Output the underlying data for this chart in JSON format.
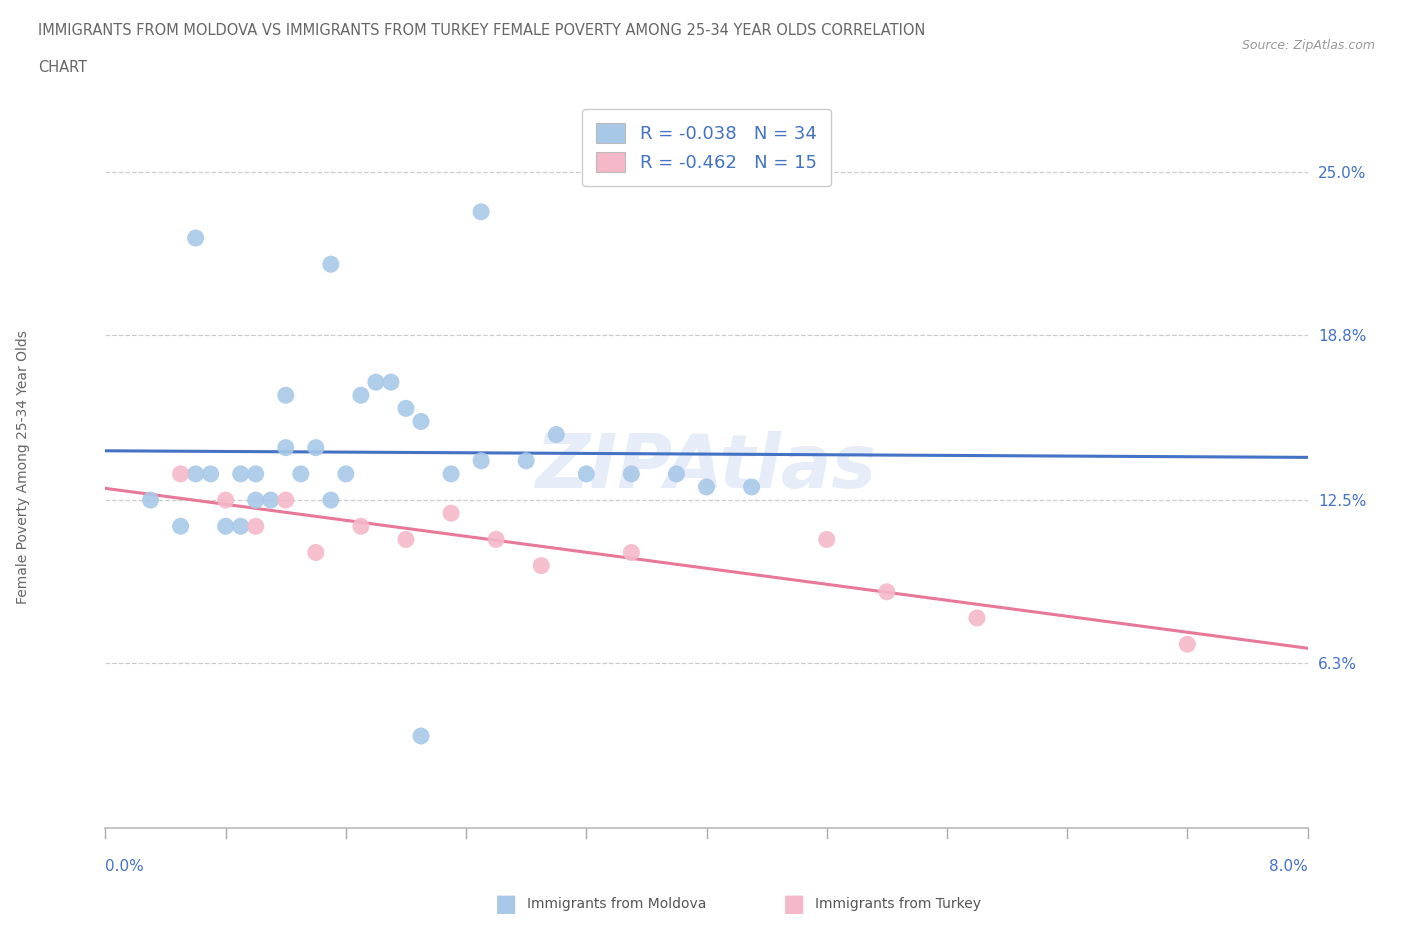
{
  "title_line1": "IMMIGRANTS FROM MOLDOVA VS IMMIGRANTS FROM TURKEY FEMALE POVERTY AMONG 25-34 YEAR OLDS CORRELATION",
  "title_line2": "CHART",
  "source_text": "Source: ZipAtlas.com",
  "moldova_color": "#a8c8e8",
  "turkey_color": "#f4b8c8",
  "moldova_line_color": "#4472c4",
  "turkey_line_color": "#e87898",
  "moldova_R": -0.038,
  "moldova_N": 34,
  "turkey_R": -0.462,
  "turkey_N": 15,
  "ylabel": "Female Poverty Among 25-34 Year Olds",
  "y_ticks": [
    6.3,
    12.5,
    18.8,
    25.0
  ],
  "y_tick_labels": [
    "6.3%",
    "12.5%",
    "18.8%",
    "25.0%"
  ],
  "xlim": [
    0.0,
    8.0
  ],
  "ylim": [
    0.0,
    27.5
  ],
  "moldova_x": [
    0.3,
    0.5,
    0.6,
    0.7,
    0.8,
    0.9,
    0.9,
    1.0,
    1.0,
    1.1,
    1.2,
    1.2,
    1.3,
    1.4,
    1.5,
    1.6,
    1.7,
    1.8,
    1.9,
    2.0,
    2.1,
    2.3,
    2.5,
    2.8,
    3.0,
    3.2,
    3.5,
    3.8,
    4.0,
    4.3,
    2.5,
    1.5,
    2.1,
    0.6
  ],
  "moldova_y": [
    12.5,
    11.5,
    13.5,
    13.5,
    11.5,
    11.5,
    13.5,
    12.5,
    13.5,
    12.5,
    14.5,
    16.5,
    13.5,
    14.5,
    12.5,
    13.5,
    16.5,
    17.0,
    17.0,
    16.0,
    15.5,
    13.5,
    14.0,
    14.0,
    15.0,
    13.5,
    13.5,
    13.5,
    13.0,
    13.0,
    23.5,
    21.5,
    3.5,
    22.5
  ],
  "turkey_x": [
    0.5,
    0.8,
    1.0,
    1.2,
    1.4,
    1.7,
    2.0,
    2.3,
    2.6,
    2.9,
    3.5,
    4.8,
    5.2,
    5.8,
    7.2
  ],
  "turkey_y": [
    13.5,
    12.5,
    11.5,
    12.5,
    10.5,
    11.5,
    11.0,
    12.0,
    11.0,
    10.0,
    10.5,
    11.0,
    9.0,
    8.0,
    7.0
  ]
}
